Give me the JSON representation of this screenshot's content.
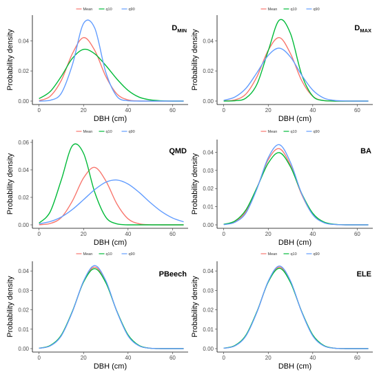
{
  "colors": {
    "Mean": "#F8766D",
    "q10": "#00BA38",
    "q90": "#619CFF"
  },
  "chart_data": [
    {
      "type": "line",
      "title": "D",
      "title_sub": "MIN",
      "xlabel": "DBH (cm)",
      "ylabel": "Probability density",
      "xlim": [
        0,
        65
      ],
      "ylim": [
        0,
        0.057
      ],
      "xticks": [
        "0",
        "20",
        "40",
        "60"
      ],
      "yticks": [
        "0.00",
        "0.02",
        "0.04"
      ],
      "legend": [
        "Mean",
        "q10",
        "q90"
      ],
      "legend_position": "top",
      "series": [
        {
          "name": "Mean",
          "values": [
            0.0003,
            0.0032,
            0.0137,
            0.0315,
            0.0421,
            0.0337,
            0.0164,
            0.0047,
            0.0008,
            0.0001,
            0.0,
            0.0,
            0.0,
            0.0
          ]
        },
        {
          "name": "q10",
          "values": [
            0.0016,
            0.0063,
            0.0164,
            0.0284,
            0.0343,
            0.0314,
            0.0236,
            0.0146,
            0.0071,
            0.0026,
            0.0008,
            0.0002,
            0.0,
            0.0
          ]
        },
        {
          "name": "q90",
          "values": [
            0.0,
            0.0005,
            0.0052,
            0.0242,
            0.0515,
            0.0485,
            0.0191,
            0.0031,
            0.0002,
            0.0,
            0.0,
            0.0,
            0.0,
            0.0
          ]
        }
      ],
      "x": [
        0,
        5,
        10,
        15,
        20,
        25,
        30,
        35,
        40,
        45,
        50,
        55,
        60,
        65
      ]
    },
    {
      "type": "line",
      "title": "D",
      "title_sub": "MAX",
      "xlabel": "DBH (cm)",
      "ylabel": "Probability density",
      "xlim": [
        0,
        65
      ],
      "ylim": [
        0,
        0.057
      ],
      "xticks": [
        "0",
        "20",
        "40",
        "60"
      ],
      "yticks": [
        "0.00",
        "0.02",
        "0.04"
      ],
      "legend": [
        "Mean",
        "q10",
        "q90"
      ],
      "legend_position": "top",
      "series": [
        {
          "name": "Mean",
          "values": [
            0.0001,
            0.0008,
            0.0047,
            0.0164,
            0.0337,
            0.0421,
            0.0315,
            0.0137,
            0.0032,
            0.0003,
            0.0,
            0.0,
            0.0,
            0.0
          ]
        },
        {
          "name": "q10",
          "values": [
            0.0,
            0.0002,
            0.002,
            0.0114,
            0.0334,
            0.0537,
            0.0448,
            0.0177,
            0.0033,
            0.0003,
            0.0,
            0.0,
            0.0,
            0.0
          ]
        },
        {
          "name": "q90",
          "values": [
            0.0005,
            0.0027,
            0.0085,
            0.019,
            0.0303,
            0.0351,
            0.0292,
            0.0173,
            0.0073,
            0.002,
            0.0004,
            0.0001,
            0.0,
            0.0
          ]
        }
      ],
      "x": [
        0,
        5,
        10,
        15,
        20,
        25,
        30,
        35,
        40,
        45,
        50,
        55,
        60,
        65
      ]
    },
    {
      "type": "line",
      "title": "QMD",
      "title_sub": "",
      "xlabel": "DBH (cm)",
      "ylabel": "Probability density",
      "xlim": [
        0,
        65
      ],
      "ylim": [
        0,
        0.062
      ],
      "xticks": [
        "0",
        "20",
        "40",
        "60"
      ],
      "yticks": [
        "0.00",
        "0.02",
        "0.04",
        "0.06"
      ],
      "legend": [
        "Mean",
        "q10",
        "q90"
      ],
      "legend_position": "top",
      "series": [
        {
          "name": "Mean",
          "values": [
            0.0001,
            0.001,
            0.0053,
            0.0174,
            0.0341,
            0.0418,
            0.032,
            0.0152,
            0.0044,
            0.0008,
            0.0001,
            0.0,
            0.0,
            0.0
          ]
        },
        {
          "name": "q10",
          "values": [
            0.0013,
            0.0095,
            0.0327,
            0.0576,
            0.052,
            0.0238,
            0.0056,
            0.0007,
            0.0,
            0.0,
            0.0,
            0.0,
            0.0,
            0.0
          ]
        },
        {
          "name": "q90",
          "values": [
            0.0008,
            0.0024,
            0.0057,
            0.0112,
            0.0183,
            0.0256,
            0.031,
            0.0326,
            0.0297,
            0.0236,
            0.0162,
            0.0097,
            0.005,
            0.0022
          ]
        }
      ],
      "x": [
        0,
        5,
        10,
        15,
        20,
        25,
        30,
        35,
        40,
        45,
        50,
        55,
        60,
        65
      ]
    },
    {
      "type": "line",
      "title": "BA",
      "title_sub": "",
      "xlabel": "DBH (cm)",
      "ylabel": "Probability density",
      "xlim": [
        0,
        65
      ],
      "ylim": [
        0,
        0.047
      ],
      "xticks": [
        "0",
        "20",
        "40",
        "60"
      ],
      "yticks": [
        "0.00",
        "0.01",
        "0.02",
        "0.03",
        "0.04"
      ],
      "legend": [
        "Mean",
        "q10",
        "q90"
      ],
      "legend_position": "top",
      "series": [
        {
          "name": "Mean",
          "values": [
            0.0002,
            0.0017,
            0.0075,
            0.0206,
            0.0359,
            0.042,
            0.0328,
            0.0168,
            0.0057,
            0.0013,
            0.0002,
            0.0,
            0.0,
            0.0
          ]
        },
        {
          "name": "q10",
          "values": [
            0.0003,
            0.0021,
            0.0083,
            0.0207,
            0.034,
            0.0398,
            0.032,
            0.0174,
            0.0064,
            0.0016,
            0.0003,
            0.0,
            0.0,
            0.0
          ]
        },
        {
          "name": "q90",
          "values": [
            0.0001,
            0.0014,
            0.0066,
            0.0201,
            0.037,
            0.0442,
            0.0344,
            0.0173,
            0.0056,
            0.0012,
            0.0002,
            0.0,
            0.0,
            0.0
          ]
        }
      ],
      "x": [
        0,
        5,
        10,
        15,
        20,
        25,
        30,
        35,
        40,
        45,
        50,
        55,
        60,
        65
      ]
    },
    {
      "type": "line",
      "title": "PBeech",
      "title_sub": "",
      "xlabel": "DBH (cm)",
      "ylabel": "Probability density",
      "xlim": [
        0,
        65
      ],
      "ylim": [
        0,
        0.045
      ],
      "xticks": [
        "0",
        "20",
        "40",
        "60"
      ],
      "yticks": [
        "0.00",
        "0.01",
        "0.02",
        "0.03",
        "0.04"
      ],
      "legend": [
        "Mean",
        "q10",
        "q90"
      ],
      "legend_position": "top",
      "series": [
        {
          "name": "Mean",
          "values": [
            0.0002,
            0.0015,
            0.0068,
            0.0191,
            0.0345,
            0.042,
            0.0345,
            0.0191,
            0.0068,
            0.0015,
            0.0002,
            0.0,
            0.0,
            0.0
          ]
        },
        {
          "name": "q10",
          "values": [
            0.0002,
            0.0016,
            0.007,
            0.0193,
            0.0343,
            0.0412,
            0.034,
            0.0192,
            0.0071,
            0.0016,
            0.0002,
            0.0,
            0.0,
            0.0
          ]
        },
        {
          "name": "q90",
          "values": [
            0.0002,
            0.0014,
            0.0066,
            0.019,
            0.0348,
            0.0428,
            0.035,
            0.019,
            0.0066,
            0.0014,
            0.0002,
            0.0,
            0.0,
            0.0
          ]
        }
      ],
      "x": [
        0,
        5,
        10,
        15,
        20,
        25,
        30,
        35,
        40,
        45,
        50,
        55,
        60,
        65
      ]
    },
    {
      "type": "line",
      "title": "ELE",
      "title_sub": "",
      "xlabel": "DBH (cm)",
      "ylabel": "Probability density",
      "xlim": [
        0,
        65
      ],
      "ylim": [
        0,
        0.045
      ],
      "xticks": [
        "0",
        "20",
        "40",
        "60"
      ],
      "yticks": [
        "0.00",
        "0.01",
        "0.02",
        "0.03",
        "0.04"
      ],
      "legend": [
        "Mean",
        "q10",
        "q90"
      ],
      "legend_position": "top",
      "series": [
        {
          "name": "Mean",
          "values": [
            0.0002,
            0.0015,
            0.0068,
            0.0191,
            0.0345,
            0.042,
            0.0345,
            0.0191,
            0.0068,
            0.0015,
            0.0002,
            0.0,
            0.0,
            0.0
          ]
        },
        {
          "name": "q10",
          "values": [
            0.0002,
            0.0016,
            0.007,
            0.0193,
            0.0343,
            0.0414,
            0.0341,
            0.0192,
            0.0071,
            0.0016,
            0.0002,
            0.0,
            0.0,
            0.0
          ]
        },
        {
          "name": "q90",
          "values": [
            0.0002,
            0.0014,
            0.0066,
            0.019,
            0.0347,
            0.0426,
            0.0349,
            0.019,
            0.0066,
            0.0014,
            0.0002,
            0.0,
            0.0,
            0.0
          ]
        }
      ],
      "x": [
        0,
        5,
        10,
        15,
        20,
        25,
        30,
        35,
        40,
        45,
        50,
        55,
        60,
        65
      ]
    }
  ]
}
